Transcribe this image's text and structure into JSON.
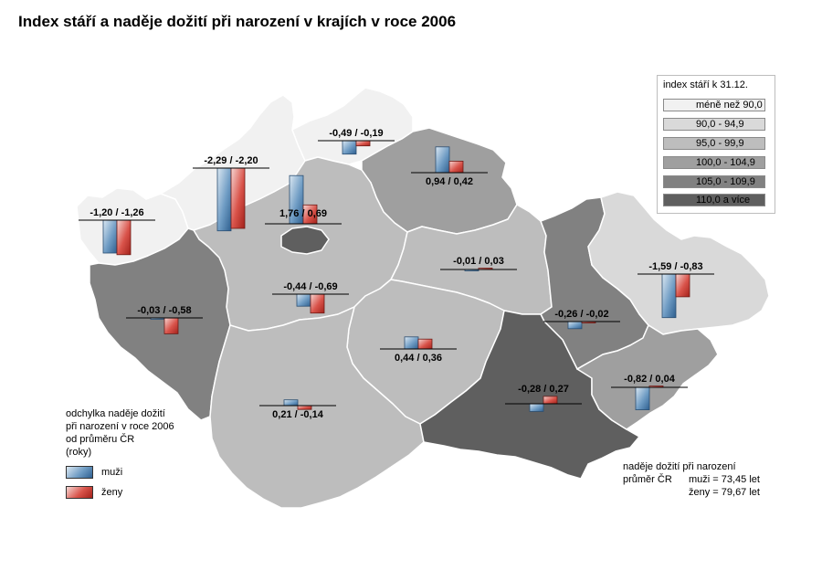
{
  "title": "Index stáří a naděje dožití při narození v krajích v roce 2006",
  "legend_index": {
    "title": "index stáří k 31.12.",
    "items": [
      {
        "label": "méně než 90,0",
        "color": "#f1f1f1"
      },
      {
        "label": "90,0 - 94,9",
        "color": "#d9d9d9"
      },
      {
        "label": "95,0 - 99,9",
        "color": "#bdbdbd"
      },
      {
        "label": "100,0 - 104,9",
        "color": "#9f9f9f"
      },
      {
        "label": "105,0 - 109,9",
        "color": "#818181"
      },
      {
        "label": "110,0 a více",
        "color": "#5f5f5f"
      }
    ]
  },
  "legend_deviation": {
    "lines": [
      "odchylka naděje dožití",
      "při narození v roce 2006",
      "od průměru ČR",
      "(roky)"
    ],
    "men_label": "muži",
    "women_label": "ženy",
    "men_color": "#4a7eab",
    "women_color": "#c23a31"
  },
  "cr_average": {
    "line1": "naděje dožití při narození",
    "line2_left": "průměr ČR",
    "line2_right": "muži = 73,45 let",
    "line3_right": "ženy = 79,67 let"
  },
  "regions": [
    {
      "id": "karlovarsky",
      "label": "-1,20 / -1,26",
      "men": -1.2,
      "women": -1.26,
      "class": "méně než 90,0"
    },
    {
      "id": "ustecky",
      "label": "-2,29 / -2,20",
      "men": -2.29,
      "women": -2.2,
      "class": "méně než 90,0"
    },
    {
      "id": "liberecky",
      "label": "-0,49 / -0,19",
      "men": -0.49,
      "women": -0.19,
      "class": "méně než 90,0"
    },
    {
      "id": "kralovehradecky",
      "label": "0,94 / 0,42",
      "men": 0.94,
      "women": 0.42,
      "class": "100,0 - 104,9"
    },
    {
      "id": "praha",
      "label": "1,76 / 0,69",
      "men": 1.76,
      "women": 0.69,
      "class": "110,0 a více"
    },
    {
      "id": "plzensky",
      "label": "-0,03 / -0,58",
      "men": -0.03,
      "women": -0.58,
      "class": "110,0 a více"
    },
    {
      "id": "stredocesky",
      "label": "-0,44 / -0,69",
      "men": -0.44,
      "women": -0.69,
      "class": "95,0 - 99,9"
    },
    {
      "id": "pardubicky",
      "label": "-0,01 / 0,03",
      "men": -0.01,
      "women": 0.03,
      "class": "95,0 - 99,9"
    },
    {
      "id": "olomoucky",
      "label": "-0,26 / -0,02",
      "men": -0.26,
      "women": -0.02,
      "class": "105,0 - 109,9"
    },
    {
      "id": "moravskoslezsky",
      "label": "-1,59 / -0,83",
      "men": -1.59,
      "women": -0.83,
      "class": "90,0 - 94,9"
    },
    {
      "id": "vysocina",
      "label": "0,44 / 0,36",
      "men": 0.44,
      "women": 0.36,
      "class": "95,0 - 99,9"
    },
    {
      "id": "jihocesky",
      "label": "0,21 / -0,14",
      "men": 0.21,
      "women": -0.14,
      "class": "95,0 - 99,9"
    },
    {
      "id": "jihomoravsky",
      "label": "-0,28 / 0,27",
      "men": -0.28,
      "women": 0.27,
      "class": "110,0 a více"
    },
    {
      "id": "zlinsky",
      "label": "-0,82 / 0,04",
      "men": -0.82,
      "women": 0.04,
      "class": "105,0 - 109,9"
    }
  ]
}
